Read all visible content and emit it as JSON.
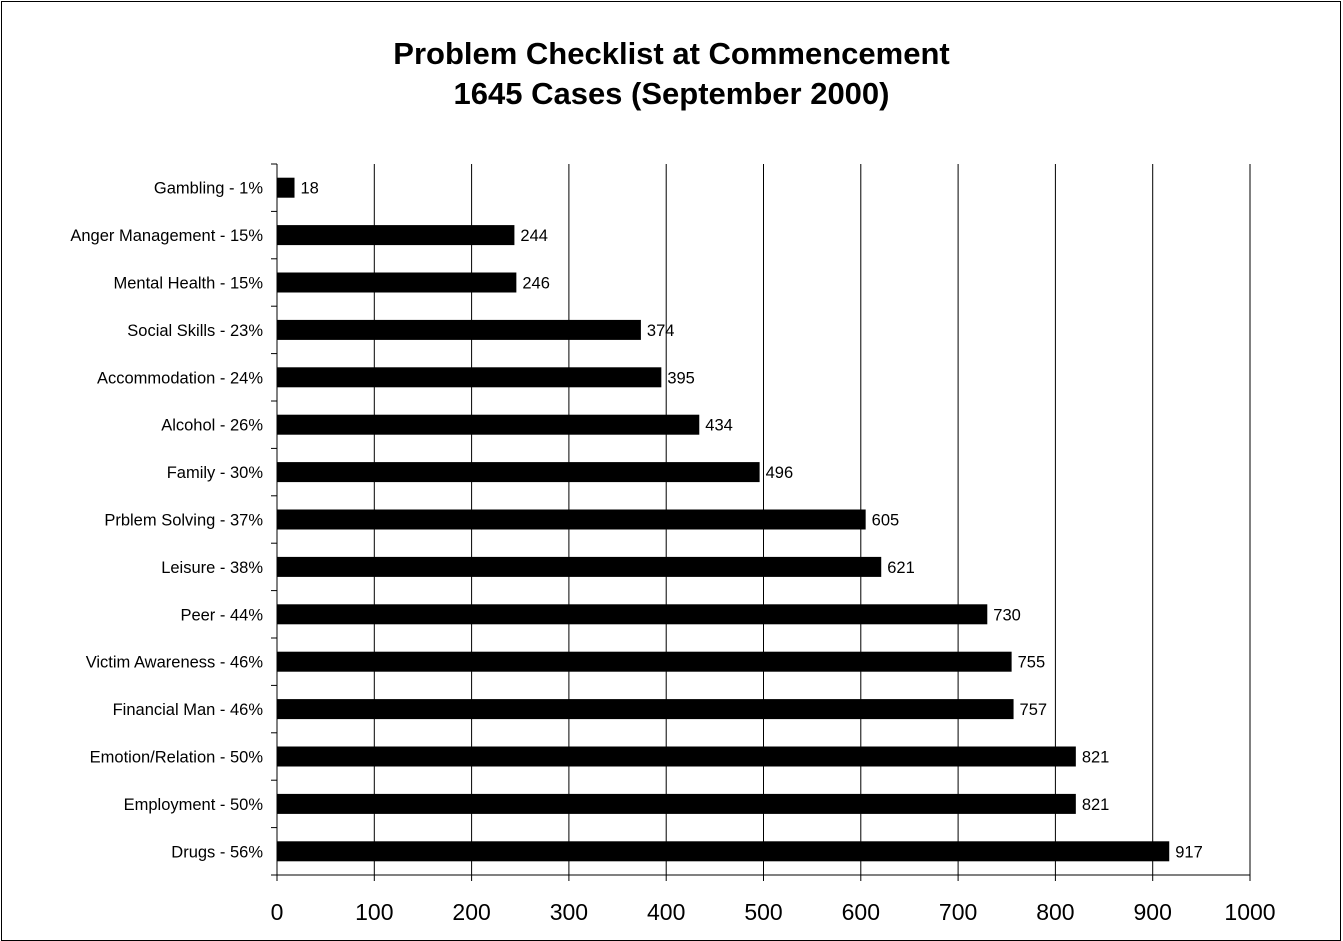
{
  "chart_data": {
    "type": "bar",
    "orientation": "horizontal",
    "title": [
      "Problem Checklist at Commencement",
      "1645 Cases (September 2000)"
    ],
    "xlabel": "",
    "ylabel": "",
    "xlim": [
      0,
      1000
    ],
    "x_ticks": [
      0,
      100,
      200,
      300,
      400,
      500,
      600,
      700,
      800,
      900,
      1000
    ],
    "grid": "vertical",
    "legend": "none",
    "bar_color": "#000000",
    "categories": [
      "Gambling - 1%",
      "Anger Management - 15%",
      "Mental Health - 15%",
      "Social Skills - 23%",
      "Accommodation - 24%",
      "Alcohol - 26%",
      "Family - 30%",
      "Prblem Solving - 37%",
      "Leisure - 38%",
      "Peer - 44%",
      "Victim Awareness - 46%",
      "Financial Man - 46%",
      "Emotion/Relation - 50%",
      "Employment - 50%",
      "Drugs - 56%"
    ],
    "values": [
      18,
      244,
      246,
      374,
      395,
      434,
      496,
      605,
      621,
      730,
      755,
      757,
      821,
      821,
      917
    ]
  }
}
